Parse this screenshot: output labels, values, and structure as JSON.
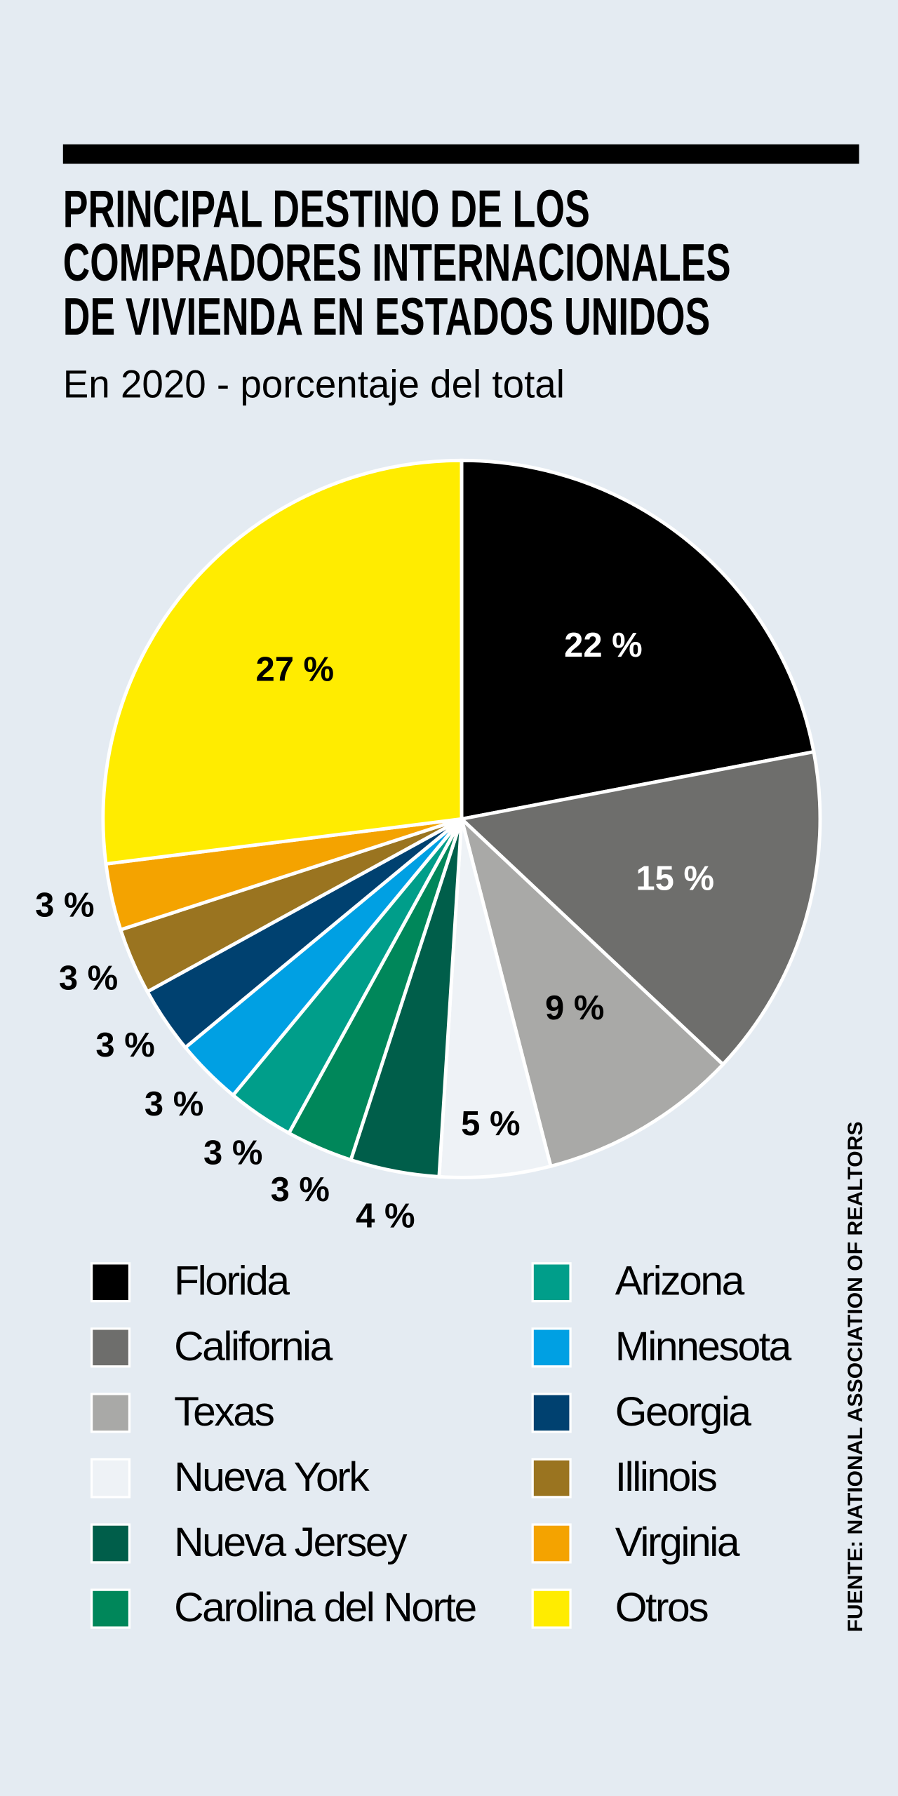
{
  "chart_data": {
    "type": "pie",
    "title": [
      "PRINCIPAL DESTINO DE LOS",
      "COMPRADORES INTERNACIONALES",
      "DE VIVIENDA EN ESTADOS UNIDOS"
    ],
    "subtitle": "En 2020 - porcentaje del total",
    "categories": [
      "Florida",
      "California",
      "Texas",
      "Nueva York",
      "Nueva Jersey",
      "Carolina del Norte",
      "Arizona",
      "Minnesota",
      "Georgia",
      "Illinois",
      "Virginia",
      "Otros"
    ],
    "values": [
      22,
      15,
      9,
      5,
      4,
      3,
      3,
      3,
      3,
      3,
      3,
      27
    ],
    "value_labels": [
      "22 %",
      "15 %",
      "9 %",
      "5 %",
      "4 %",
      "3 %",
      "3 %",
      "3 %",
      "3 %",
      "3 %",
      "3 %",
      "27 %"
    ],
    "colors": [
      "#000000",
      "#6e6e6c",
      "#a9a9a7",
      "#eef2f6",
      "#005e4a",
      "#00875a",
      "#009e8a",
      "#00a0e3",
      "#004170",
      "#9a7420",
      "#f4a300",
      "#ffec00"
    ],
    "source": "FUENTE: NATIONAL ASSOCIATION OF REALTORS"
  }
}
